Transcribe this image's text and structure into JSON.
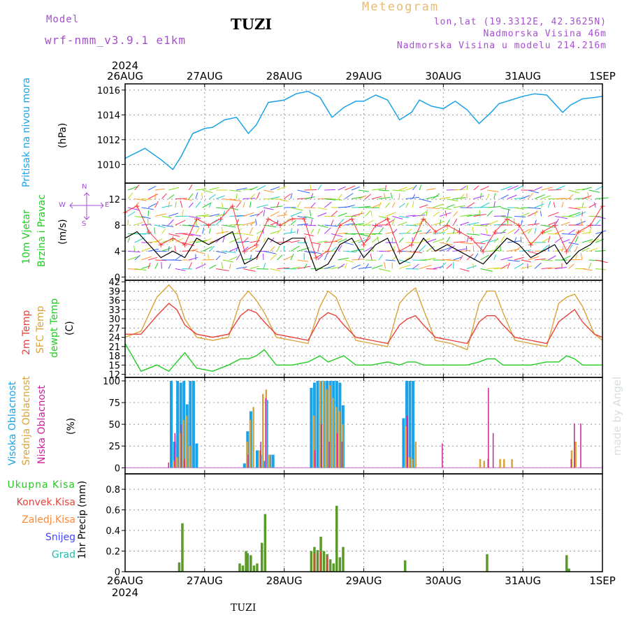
{
  "header": {
    "model_label": "Model",
    "model_name": "wrf-nmm_v3.9.1 e1km",
    "station": "TUZI",
    "title": "Meteogram",
    "lonlat": "lon,lat (19.3312E, 42.3625N)",
    "elevation": "Nadmorska Visina 46m",
    "model_elevation": "Nadmorska Visina u modelu 214.216m",
    "watermark": "made by Angel",
    "footer_station": "TUZI"
  },
  "time_axis": {
    "year": "2024",
    "days": [
      "26AUG",
      "27AUG",
      "28AUG",
      "29AUG",
      "30AUG",
      "31AUG",
      "1SEP"
    ]
  },
  "colors": {
    "pressure": "#1aa3e8",
    "wind_speed": "#000000",
    "wind_gust": "#ff3333",
    "temp_2m": "#e8433a",
    "temp_sfc": "#d9a33a",
    "dewpoint": "#22cc22",
    "cloud_high": "#1aa3e8",
    "cloud_mid": "#d9a33a",
    "cloud_low": "#cc2299",
    "precip_total": "#5a9a2a",
    "precip_conv": "#e8433a",
    "precip_frozen": "#ff8833",
    "snow": "#4444ff",
    "hail": "#22bbaa"
  },
  "chart_data": [
    {
      "id": "pressure",
      "type": "line",
      "ylabel": "Pritisak na nivou mora",
      "unit": "(hPa)",
      "ylim": [
        1008.5,
        1016.5
      ],
      "yticks": [
        1010,
        1012,
        1014,
        1016
      ],
      "x_days": [
        0.0,
        0.25,
        0.45,
        0.6,
        0.7,
        0.85,
        1.0,
        1.1,
        1.25,
        1.4,
        1.55,
        1.65,
        1.8,
        2.0,
        2.15,
        2.3,
        2.45,
        2.6,
        2.75,
        2.9,
        3.0,
        3.15,
        3.3,
        3.45,
        3.6,
        3.7,
        3.85,
        4.0,
        4.15,
        4.3,
        4.45,
        4.6,
        4.7,
        4.85,
        5.0,
        5.15,
        5.3,
        5.5,
        5.6,
        5.75,
        5.9,
        6.0
      ],
      "series": [
        {
          "key": "slp",
          "values": [
            1010.5,
            1011.3,
            1010.4,
            1009.6,
            1010.6,
            1012.5,
            1012.9,
            1013.0,
            1013.6,
            1013.8,
            1012.5,
            1013.2,
            1015.0,
            1015.2,
            1015.7,
            1015.9,
            1015.4,
            1013.8,
            1014.6,
            1015.1,
            1015.1,
            1015.6,
            1015.2,
            1013.6,
            1014.2,
            1015.2,
            1014.7,
            1014.5,
            1015.1,
            1014.4,
            1013.3,
            1014.2,
            1014.9,
            1015.2,
            1015.5,
            1015.7,
            1015.6,
            1014.2,
            1014.8,
            1015.3,
            1015.4,
            1015.5
          ]
        }
      ]
    },
    {
      "id": "wind",
      "type": "line",
      "ylabel_1": "10m Vjetar",
      "ylabel_2": "Brzina i Pravac",
      "unit": "(m/s)",
      "ylim": [
        -0.5,
        14.5
      ],
      "yticks": [
        0,
        4,
        8,
        12
      ],
      "compass": {
        "n": "N",
        "w": "W",
        "e": "E",
        "s": "S"
      },
      "x_days": [
        0.0,
        0.15,
        0.3,
        0.45,
        0.6,
        0.75,
        0.9,
        1.05,
        1.2,
        1.35,
        1.5,
        1.65,
        1.8,
        1.95,
        2.1,
        2.25,
        2.4,
        2.55,
        2.7,
        2.85,
        3.0,
        3.15,
        3.3,
        3.45,
        3.6,
        3.75,
        3.9,
        4.05,
        4.2,
        4.35,
        4.5,
        4.65,
        4.8,
        4.95,
        5.1,
        5.25,
        5.4,
        5.55,
        5.7,
        5.85,
        6.0
      ],
      "series": [
        {
          "key": "speed",
          "values": [
            6,
            7,
            5,
            3,
            4,
            3,
            6,
            5,
            6,
            7,
            2,
            3,
            6,
            5,
            6,
            6,
            1,
            2,
            5,
            6,
            3,
            5,
            6,
            2,
            3,
            6,
            4,
            5,
            4,
            3,
            2,
            4,
            6,
            5,
            3,
            4,
            5,
            2,
            4,
            5,
            7
          ]
        },
        {
          "key": "gust",
          "values": [
            10,
            11,
            7,
            5,
            6,
            5,
            9,
            8,
            9,
            11,
            4,
            5,
            9,
            8,
            9,
            9,
            3,
            4,
            8,
            9,
            5,
            8,
            9,
            4,
            5,
            9,
            7,
            8,
            7,
            6,
            4,
            7,
            9,
            8,
            5,
            7,
            8,
            4,
            7,
            8,
            11
          ]
        }
      ]
    },
    {
      "id": "temperature",
      "type": "line",
      "ylabel_1": "2m Temp",
      "ylabel_2": "SFC Temp",
      "ylabel_3": "dewpt Temp",
      "unit": "(C)",
      "ylim": [
        11,
        42.5
      ],
      "yticks": [
        12,
        15,
        18,
        21,
        24,
        27,
        30,
        33,
        36,
        39,
        42
      ],
      "x_days": [
        0.0,
        0.2,
        0.4,
        0.55,
        0.65,
        0.75,
        0.9,
        1.1,
        1.3,
        1.45,
        1.55,
        1.65,
        1.75,
        1.9,
        2.1,
        2.3,
        2.45,
        2.55,
        2.65,
        2.75,
        2.9,
        3.1,
        3.3,
        3.45,
        3.55,
        3.65,
        3.75,
        3.9,
        4.1,
        4.3,
        4.45,
        4.55,
        4.65,
        4.75,
        4.9,
        5.1,
        5.3,
        5.45,
        5.55,
        5.65,
        5.75,
        5.9,
        6.0
      ],
      "series": [
        {
          "key": "t2m",
          "values": [
            25,
            25,
            31,
            35,
            33,
            28,
            25,
            24,
            25,
            31,
            33,
            32,
            29,
            25,
            24,
            23,
            30,
            32,
            31,
            28,
            24,
            23,
            22,
            28,
            30,
            31,
            28,
            24,
            23,
            22,
            29,
            31,
            31,
            28,
            24,
            23,
            22,
            29,
            31,
            33,
            29,
            25,
            24
          ]
        },
        {
          "key": "tsfc",
          "values": [
            24,
            26,
            37,
            41,
            38,
            30,
            24,
            23,
            24,
            36,
            39,
            36,
            32,
            24,
            23,
            22,
            34,
            39,
            37,
            31,
            23,
            22,
            21,
            35,
            38,
            40,
            33,
            23,
            22,
            20,
            35,
            39,
            39,
            32,
            23,
            22,
            21,
            35,
            37,
            38,
            34,
            25,
            23
          ]
        },
        {
          "key": "dewpt",
          "values": [
            22,
            13,
            15,
            13,
            16,
            19,
            14,
            13,
            15,
            17,
            17,
            18,
            20,
            15,
            15,
            16,
            18,
            16,
            17,
            18,
            15,
            15,
            16,
            15,
            16,
            16,
            15,
            15,
            15,
            15,
            16,
            17,
            17,
            15,
            15,
            15,
            16,
            16,
            18,
            17,
            15,
            15,
            15
          ]
        }
      ]
    },
    {
      "id": "clouds",
      "type": "bar",
      "ylabel_1": "Visoka Oblacnost",
      "ylabel_2": "Srednja Oblacnost",
      "ylabel_3": "Niska Oblacnost",
      "unit": "(%)",
      "ylim": [
        -7,
        104
      ],
      "yticks": [
        0,
        25,
        50,
        75,
        100
      ],
      "series": [
        {
          "key": "high",
          "x_days": [
            0.58,
            0.62,
            0.66,
            0.7,
            0.74,
            0.78,
            0.82,
            0.86,
            0.9,
            1.5,
            1.54,
            1.58,
            1.66,
            1.7,
            1.74,
            1.78,
            1.82,
            1.86,
            2.34,
            2.38,
            2.42,
            2.46,
            2.5,
            2.54,
            2.58,
            2.62,
            2.66,
            2.7,
            2.74,
            3.5,
            3.54,
            3.58,
            3.62
          ],
          "values": [
            100,
            30,
            100,
            98,
            100,
            73,
            100,
            100,
            28,
            5,
            42,
            65,
            20,
            15,
            8,
            78,
            15,
            15,
            92,
            98,
            100,
            100,
            100,
            100,
            100,
            100,
            100,
            98,
            72,
            57,
            100,
            100,
            100
          ]
        },
        {
          "key": "mid",
          "x_days": [
            0.6,
            0.64,
            0.68,
            0.72,
            0.76,
            0.8,
            1.52,
            1.56,
            1.6,
            1.68,
            1.72,
            1.76,
            1.8,
            2.36,
            2.44,
            2.48,
            2.52,
            2.56,
            2.6,
            2.64,
            2.68,
            2.72,
            3.52,
            3.56,
            3.6,
            3.64,
            4.45,
            4.5,
            4.55,
            4.7,
            4.75,
            4.85,
            5.6,
            5.65
          ],
          "values": [
            8,
            12,
            40,
            55,
            60,
            25,
            30,
            55,
            70,
            20,
            85,
            90,
            15,
            60,
            100,
            100,
            90,
            95,
            80,
            70,
            65,
            50,
            48,
            12,
            10,
            30,
            10,
            8,
            10,
            10,
            10,
            10,
            20,
            30
          ]
        },
        {
          "key": "low",
          "x_days": [
            0.56,
            0.64,
            0.72,
            0.76,
            1.56,
            1.72,
            1.78,
            2.4,
            2.48,
            2.58,
            2.68,
            2.74,
            3.56,
            4.0,
            4.58,
            4.64,
            5.62,
            5.66,
            5.74
          ],
          "values": [
            6,
            40,
            50,
            10,
            15,
            30,
            80,
            20,
            50,
            30,
            40,
            30,
            60,
            28,
            92,
            40,
            10,
            51,
            51
          ]
        }
      ]
    },
    {
      "id": "precip",
      "type": "bar",
      "ylabel_1": "1hr Precip",
      "unit": "(mm)",
      "legend": [
        "Ukupna Kisa",
        "Konvek.Kisa",
        "Zaledj.Kisa",
        "Snijeg",
        "Grad"
      ],
      "ylim": [
        0,
        0.95
      ],
      "yticks": [
        0,
        0.2,
        0.4,
        0.6,
        0.8
      ],
      "ytick_labels": [
        "0",
        "0.2",
        "0.4",
        "0.6",
        "0.8"
      ],
      "series": [
        {
          "key": "total",
          "x_days": [
            0.68,
            0.72,
            1.44,
            1.48,
            1.52,
            1.54,
            1.58,
            1.62,
            1.66,
            1.72,
            1.76,
            2.34,
            2.38,
            2.42,
            2.46,
            2.5,
            2.54,
            2.58,
            2.62,
            2.66,
            2.7,
            2.74,
            3.52,
            4.55,
            5.55,
            5.58
          ],
          "values": [
            0.09,
            0.47,
            0.08,
            0.06,
            0.2,
            0.18,
            0.16,
            0.06,
            0.08,
            0.28,
            0.56,
            0.2,
            0.24,
            0.21,
            0.34,
            0.2,
            0.17,
            0.12,
            0.08,
            0.64,
            0.14,
            0.24,
            0.11,
            0.17,
            0.16,
            0.03
          ]
        },
        {
          "key": "conv",
          "x_days": [
            2.36,
            2.44,
            2.52
          ],
          "values": [
            0.18,
            0.2,
            0.15
          ]
        }
      ]
    }
  ]
}
